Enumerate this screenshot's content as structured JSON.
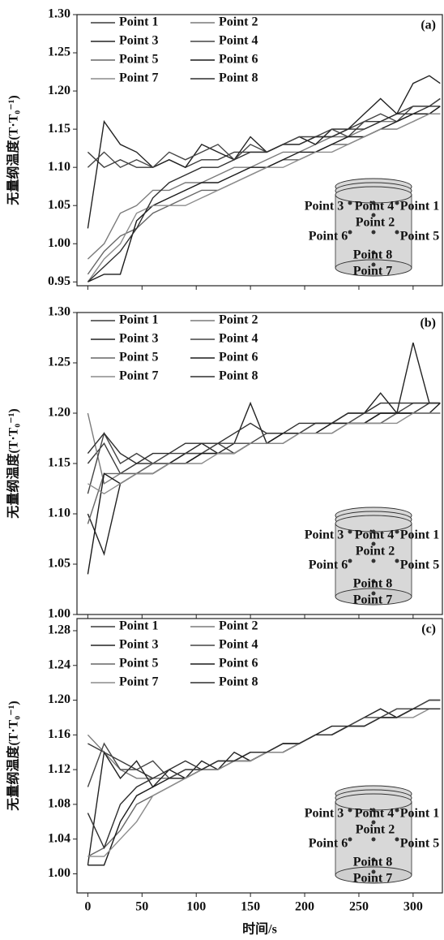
{
  "chart_data": [
    {
      "type": "line",
      "title": "(a)",
      "ylabel": "无量纲温度(T·T₀⁻¹)",
      "x": [
        0,
        15,
        30,
        45,
        60,
        75,
        90,
        105,
        120,
        135,
        150,
        165,
        180,
        195,
        210,
        225,
        240,
        255,
        270,
        285,
        300,
        315,
        325
      ],
      "xlim": [
        -10,
        327
      ],
      "xticks": [
        0,
        50,
        100,
        150,
        200,
        250,
        300
      ],
      "xtick_labels": false,
      "ylim": [
        0.945,
        1.3
      ],
      "yticks": [
        0.95,
        {
          "value": 1,
          "label": "1.00"
        },
        1.05,
        {
          "value": 1.1,
          "label": "1.10"
        },
        1.15,
        {
          "value": 1.2,
          "label": "1.20"
        },
        1.25,
        {
          "value": 1.3,
          "label": "1.30"
        }
      ],
      "annotations": [
        "Point 3",
        "Point 4",
        "Point 1",
        "Point 2",
        "Point 6",
        "Point 5",
        "Point 8",
        "Point 7"
      ],
      "series": [
        {
          "name": "Point 1",
          "color": "#3a3a3a",
          "values": [
            1.12,
            1.1,
            1.11,
            1.1,
            1.1,
            1.11,
            1.1,
            1.11,
            1.11,
            1.12,
            1.12,
            1.12,
            1.13,
            1.13,
            1.14,
            1.14,
            1.15,
            1.16,
            1.16,
            1.17,
            1.18,
            1.18,
            1.19
          ]
        },
        {
          "name": "Point 2",
          "color": "#7a7a7a",
          "values": [
            0.98,
            1.0,
            1.04,
            1.05,
            1.07,
            1.07,
            1.08,
            1.08,
            1.09,
            1.1,
            1.1,
            1.11,
            1.12,
            1.12,
            1.13,
            1.14,
            1.14,
            1.15,
            1.16,
            1.16,
            1.17,
            1.17,
            1.18
          ]
        },
        {
          "name": "Point 3",
          "color": "#222222",
          "values": [
            1.02,
            1.16,
            1.13,
            1.12,
            1.1,
            1.11,
            1.1,
            1.13,
            1.12,
            1.11,
            1.14,
            1.12,
            1.13,
            1.14,
            1.13,
            1.15,
            1.15,
            1.17,
            1.19,
            1.17,
            1.21,
            1.22,
            1.21
          ]
        },
        {
          "name": "Point 4",
          "color": "#444444",
          "values": [
            1.1,
            1.12,
            1.1,
            1.11,
            1.1,
            1.12,
            1.11,
            1.12,
            1.13,
            1.11,
            1.13,
            1.12,
            1.13,
            1.14,
            1.14,
            1.15,
            1.14,
            1.16,
            1.17,
            1.16,
            1.18,
            1.18,
            1.19
          ]
        },
        {
          "name": "Point 5",
          "color": "#666666",
          "values": [
            0.96,
            0.99,
            1.01,
            1.02,
            1.04,
            1.05,
            1.06,
            1.07,
            1.07,
            1.08,
            1.09,
            1.1,
            1.11,
            1.11,
            1.12,
            1.13,
            1.13,
            1.14,
            1.15,
            1.15,
            1.16,
            1.17,
            1.17
          ]
        },
        {
          "name": "Point 6",
          "color": "#1a1a1a",
          "values": [
            0.95,
            0.96,
            0.96,
            1.03,
            1.05,
            1.06,
            1.07,
            1.08,
            1.08,
            1.09,
            1.1,
            1.1,
            1.11,
            1.12,
            1.12,
            1.13,
            1.14,
            1.14,
            1.15,
            1.16,
            1.17,
            1.17,
            1.18
          ]
        },
        {
          "name": "Point 7",
          "color": "#8c8c8c",
          "values": [
            0.95,
            0.98,
            1.0,
            1.04,
            1.05,
            1.05,
            1.05,
            1.06,
            1.07,
            1.08,
            1.09,
            1.1,
            1.1,
            1.11,
            1.12,
            1.12,
            1.13,
            1.14,
            1.15,
            1.15,
            1.16,
            1.17,
            1.17
          ]
        },
        {
          "name": "Point 8",
          "color": "#2e2e2e",
          "values": [
            0.95,
            0.97,
            0.99,
            1.02,
            1.06,
            1.08,
            1.09,
            1.1,
            1.1,
            1.11,
            1.12,
            1.12,
            1.13,
            1.13,
            1.14,
            1.14,
            1.15,
            1.15,
            1.16,
            1.17,
            1.17,
            1.18,
            1.18
          ]
        }
      ]
    },
    {
      "type": "line",
      "title": "(b)",
      "ylabel": "无量纲温度(T·T₀⁻¹)",
      "x": [
        0,
        15,
        30,
        45,
        60,
        75,
        90,
        105,
        120,
        135,
        150,
        165,
        180,
        195,
        210,
        225,
        240,
        255,
        270,
        285,
        300,
        315,
        325
      ],
      "xlim": [
        -10,
        327
      ],
      "xticks": [
        0,
        50,
        100,
        150,
        200,
        250,
        300
      ],
      "xtick_labels": false,
      "ylim": [
        1,
        1.3
      ],
      "yticks": [
        {
          "value": 1,
          "label": "1.00"
        },
        1.05,
        {
          "value": 1.1,
          "label": "1.10"
        },
        1.15,
        {
          "value": 1.2,
          "label": "1.20"
        },
        1.25,
        {
          "value": 1.3,
          "label": "1.30"
        }
      ],
      "annotations": [
        "Point 3",
        "Point 4",
        "Point 1",
        "Point 2",
        "Point 6",
        "Point 5",
        "Point 8",
        "Point 7"
      ],
      "series": [
        {
          "name": "Point 1",
          "color": "#3a3a3a",
          "values": [
            1.15,
            1.17,
            1.14,
            1.15,
            1.15,
            1.15,
            1.16,
            1.16,
            1.17,
            1.16,
            1.17,
            1.17,
            1.18,
            1.18,
            1.18,
            1.19,
            1.19,
            1.19,
            1.2,
            1.2,
            1.2,
            1.21,
            1.21
          ]
        },
        {
          "name": "Point 2",
          "color": "#7a7a7a",
          "values": [
            1.2,
            1.13,
            1.14,
            1.14,
            1.15,
            1.15,
            1.15,
            1.16,
            1.16,
            1.16,
            1.17,
            1.17,
            1.17,
            1.18,
            1.18,
            1.18,
            1.19,
            1.19,
            1.19,
            1.2,
            1.2,
            1.2,
            1.2
          ]
        },
        {
          "name": "Point 3",
          "color": "#222222",
          "values": [
            1.1,
            1.06,
            1.13,
            1.14,
            1.14,
            1.15,
            1.16,
            1.17,
            1.16,
            1.17,
            1.21,
            1.17,
            1.18,
            1.18,
            1.19,
            1.19,
            1.2,
            1.2,
            1.22,
            1.2,
            1.27,
            1.21,
            1.21
          ]
        },
        {
          "name": "Point 4",
          "color": "#444444",
          "values": [
            1.12,
            1.18,
            1.15,
            1.16,
            1.15,
            1.16,
            1.16,
            1.16,
            1.17,
            1.17,
            1.17,
            1.18,
            1.18,
            1.18,
            1.19,
            1.19,
            1.19,
            1.2,
            1.2,
            1.2,
            1.21,
            1.21,
            1.21
          ]
        },
        {
          "name": "Point 5",
          "color": "#666666",
          "values": [
            1.09,
            1.14,
            1.14,
            1.14,
            1.15,
            1.15,
            1.15,
            1.16,
            1.16,
            1.16,
            1.17,
            1.17,
            1.17,
            1.18,
            1.18,
            1.18,
            1.19,
            1.19,
            1.19,
            1.2,
            1.2,
            1.2,
            1.2
          ]
        },
        {
          "name": "Point 6",
          "color": "#1a1a1a",
          "values": [
            1.04,
            1.14,
            1.13,
            1.14,
            1.14,
            1.15,
            1.15,
            1.16,
            1.16,
            1.16,
            1.17,
            1.17,
            1.18,
            1.18,
            1.18,
            1.19,
            1.19,
            1.19,
            1.2,
            1.2,
            1.2,
            1.2,
            1.21
          ]
        },
        {
          "name": "Point 7",
          "color": "#8c8c8c",
          "values": [
            1.13,
            1.12,
            1.13,
            1.14,
            1.14,
            1.15,
            1.15,
            1.15,
            1.16,
            1.16,
            1.17,
            1.17,
            1.17,
            1.18,
            1.18,
            1.18,
            1.19,
            1.19,
            1.19,
            1.19,
            1.2,
            1.2,
            1.2
          ]
        },
        {
          "name": "Point 8",
          "color": "#2e2e2e",
          "values": [
            1.16,
            1.18,
            1.16,
            1.15,
            1.16,
            1.16,
            1.17,
            1.17,
            1.17,
            1.18,
            1.19,
            1.18,
            1.18,
            1.19,
            1.19,
            1.19,
            1.2,
            1.2,
            1.21,
            1.21,
            1.21,
            1.21,
            1.21
          ]
        }
      ]
    },
    {
      "type": "line",
      "title": "(c)",
      "ylabel": "无量纲温度(T·T₀⁻¹)",
      "xlabel": "时间/s",
      "x": [
        0,
        15,
        30,
        45,
        60,
        75,
        90,
        105,
        120,
        135,
        150,
        165,
        180,
        195,
        210,
        225,
        240,
        255,
        270,
        285,
        300,
        315,
        325
      ],
      "xlim": [
        -10,
        327
      ],
      "xticks": [
        0,
        50,
        100,
        150,
        200,
        250,
        300
      ],
      "xtick_labels": true,
      "ylim": [
        0.978,
        1.294
      ],
      "yticks": [
        {
          "value": 1,
          "label": "1.00"
        },
        1.04,
        1.08,
        1.12,
        1.16,
        {
          "value": 1.2,
          "label": "1.20"
        },
        1.24,
        1.28
      ],
      "annotations": [
        "Point 3",
        "Point 4",
        "Point 1",
        "Point 2",
        "Point 6",
        "Point 5",
        "Point 8",
        "Point 7"
      ],
      "series": [
        {
          "name": "Point 1",
          "color": "#3a3a3a",
          "values": [
            1.15,
            1.14,
            1.13,
            1.12,
            1.11,
            1.11,
            1.12,
            1.12,
            1.13,
            1.13,
            1.13,
            1.14,
            1.14,
            1.15,
            1.16,
            1.16,
            1.17,
            1.17,
            1.18,
            1.18,
            1.19,
            1.19,
            1.19
          ]
        },
        {
          "name": "Point 2",
          "color": "#7a7a7a",
          "values": [
            1.16,
            1.14,
            1.12,
            1.11,
            1.11,
            1.11,
            1.12,
            1.12,
            1.13,
            1.13,
            1.14,
            1.14,
            1.14,
            1.15,
            1.16,
            1.16,
            1.17,
            1.17,
            1.18,
            1.19,
            1.19,
            1.19,
            1.19
          ]
        },
        {
          "name": "Point 3",
          "color": "#222222",
          "values": [
            1.01,
            1.14,
            1.11,
            1.13,
            1.1,
            1.12,
            1.11,
            1.13,
            1.12,
            1.14,
            1.13,
            1.14,
            1.15,
            1.15,
            1.16,
            1.17,
            1.17,
            1.18,
            1.19,
            1.18,
            1.19,
            1.2,
            1.2
          ]
        },
        {
          "name": "Point 4",
          "color": "#444444",
          "values": [
            1.1,
            1.15,
            1.12,
            1.12,
            1.13,
            1.11,
            1.12,
            1.12,
            1.13,
            1.13,
            1.14,
            1.14,
            1.15,
            1.15,
            1.16,
            1.16,
            1.17,
            1.18,
            1.18,
            1.19,
            1.19,
            1.2,
            1.2
          ]
        },
        {
          "name": "Point 5",
          "color": "#666666",
          "values": [
            1.02,
            1.03,
            1.05,
            1.08,
            1.09,
            1.1,
            1.11,
            1.12,
            1.12,
            1.13,
            1.13,
            1.14,
            1.14,
            1.15,
            1.16,
            1.16,
            1.17,
            1.17,
            1.18,
            1.18,
            1.19,
            1.19,
            1.19
          ]
        },
        {
          "name": "Point 6",
          "color": "#1a1a1a",
          "values": [
            1.01,
            1.01,
            1.06,
            1.09,
            1.1,
            1.11,
            1.11,
            1.12,
            1.12,
            1.13,
            1.13,
            1.14,
            1.14,
            1.15,
            1.16,
            1.16,
            1.17,
            1.17,
            1.18,
            1.18,
            1.19,
            1.19,
            1.19
          ]
        },
        {
          "name": "Point 7",
          "color": "#8c8c8c",
          "values": [
            1.02,
            1.02,
            1.04,
            1.06,
            1.09,
            1.1,
            1.11,
            1.12,
            1.12,
            1.13,
            1.13,
            1.14,
            1.14,
            1.15,
            1.16,
            1.16,
            1.17,
            1.17,
            1.18,
            1.18,
            1.18,
            1.19,
            1.19
          ]
        },
        {
          "name": "Point 8",
          "color": "#2e2e2e",
          "values": [
            1.07,
            1.03,
            1.08,
            1.1,
            1.11,
            1.12,
            1.13,
            1.12,
            1.13,
            1.13,
            1.14,
            1.14,
            1.15,
            1.15,
            1.16,
            1.16,
            1.17,
            1.17,
            1.18,
            1.18,
            1.19,
            1.19,
            1.19
          ]
        }
      ]
    }
  ]
}
